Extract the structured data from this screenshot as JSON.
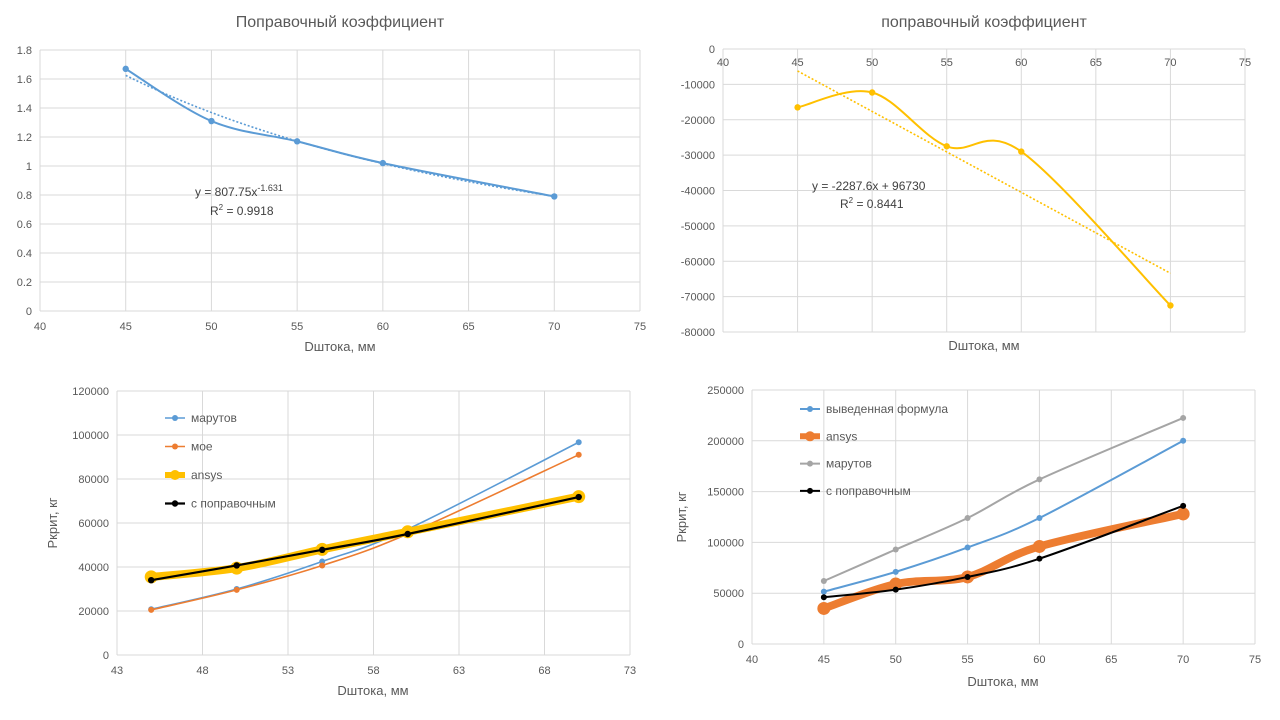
{
  "chart_data": [
    {
      "type": "scatter",
      "title": "Поправочный коэффициент",
      "xlabel": "Dштока, мм",
      "ylabel": "",
      "xlim": [
        40,
        75
      ],
      "ylim": [
        0,
        1.8
      ],
      "x_ticks": [
        "40",
        "45",
        "50",
        "55",
        "60",
        "65",
        "70",
        "75"
      ],
      "y_ticks": [
        "0",
        "0.2",
        "0.4",
        "0.6",
        "0.8",
        "1",
        "1.2",
        "1.4",
        "1.6",
        "1.8"
      ],
      "grid": "vertical and horizontal",
      "series": [
        {
          "x": [
            45,
            50,
            55,
            60,
            70
          ],
          "y": [
            1.67,
            1.31,
            1.17,
            1.02,
            0.79
          ],
          "color": "#5b9bd5"
        }
      ],
      "trendline": {
        "kind": "power",
        "a": 807.75,
        "b": -1.631,
        "color": "#5b9bd5"
      },
      "equation": {
        "base": "y = 807.75x",
        "exp": "-1.631",
        "r2_pre": "R",
        "r2_sup": "2",
        "r2_post": " = 0.9918"
      }
    },
    {
      "type": "scatter",
      "title": "поправочный коэффициент",
      "xlabel": "Dштока, мм",
      "ylabel": "",
      "xlim": [
        40,
        75
      ],
      "ylim": [
        -80000,
        0
      ],
      "x_ticks": [
        "40",
        "45",
        "50",
        "55",
        "60",
        "65",
        "70",
        "75"
      ],
      "y_ticks": [
        "0",
        "-10000",
        "-20000",
        "-30000",
        "-40000",
        "-50000",
        "-60000",
        "-70000",
        "-80000"
      ],
      "x_axis_position": "top",
      "grid": "vertical and horizontal",
      "series": [
        {
          "x": [
            45,
            50,
            55,
            60,
            70
          ],
          "y": [
            -16500,
            -12300,
            -27500,
            -29000,
            -72500
          ],
          "color": "#ffc000"
        }
      ],
      "trendline": {
        "kind": "linear",
        "slope": -2287.6,
        "intercept": 96730,
        "color": "#ffc000"
      },
      "equation": {
        "base": "y = -2287.6x + 96730",
        "exp": "",
        "r2_pre": "R",
        "r2_sup": "2",
        "r2_post": " = 0.8441"
      }
    },
    {
      "type": "line",
      "title": "",
      "xlabel": "Dштока, мм",
      "ylabel": "Ркрит, кг",
      "xlim": [
        43,
        73
      ],
      "ylim": [
        0,
        120000
      ],
      "x_ticks": [
        "43",
        "48",
        "53",
        "58",
        "63",
        "68",
        "73"
      ],
      "y_ticks": [
        "0",
        "20000",
        "40000",
        "60000",
        "80000",
        "100000",
        "120000"
      ],
      "legend_position": "top-left",
      "grid": "vertical and horizontal",
      "series": [
        {
          "name": "марутов",
          "x": [
            45,
            50,
            55,
            60,
            70
          ],
          "y": [
            20800,
            30000,
            42500,
            57200,
            96700
          ],
          "color": "#5b9bd5"
        },
        {
          "name": "мое",
          "x": [
            45,
            50,
            55,
            60,
            70
          ],
          "y": [
            20500,
            29600,
            40700,
            55000,
            91000
          ],
          "color": "#ed7d31"
        },
        {
          "name": "ansys",
          "x": [
            45,
            50,
            55,
            60,
            70
          ],
          "y": [
            35500,
            39500,
            48000,
            56000,
            72000
          ],
          "color": "#ffc000"
        },
        {
          "name": "с поправочным",
          "x": [
            45,
            50,
            55,
            60,
            70
          ],
          "y": [
            34000,
            40700,
            47800,
            55000,
            71800
          ],
          "color": "#000000"
        }
      ]
    },
    {
      "type": "line",
      "title": "",
      "xlabel": "Dштока, мм",
      "ylabel": "Ркрит, кг",
      "xlim": [
        40,
        75
      ],
      "ylim": [
        0,
        250000
      ],
      "x_ticks": [
        "40",
        "45",
        "50",
        "55",
        "60",
        "65",
        "70",
        "75"
      ],
      "y_ticks": [
        "0",
        "50000",
        "100000",
        "150000",
        "200000",
        "250000"
      ],
      "legend_position": "top-left",
      "grid": "vertical and horizontal",
      "series": [
        {
          "name": "выведенная формула",
          "x": [
            45,
            50,
            55,
            60,
            70
          ],
          "y": [
            51500,
            71000,
            95000,
            124000,
            200000
          ],
          "color": "#5b9bd5"
        },
        {
          "name": "ansys",
          "x": [
            45,
            50,
            55,
            60,
            70
          ],
          "y": [
            35000,
            59000,
            66000,
            96000,
            128000
          ],
          "color": "#ed7d31"
        },
        {
          "name": "марутов",
          "x": [
            45,
            50,
            55,
            60,
            70
          ],
          "y": [
            62000,
            93000,
            124000,
            162000,
            222500
          ],
          "color": "#a5a5a5"
        },
        {
          "name": "с поправочным",
          "x": [
            45,
            50,
            55,
            60,
            70
          ],
          "y": [
            46000,
            53500,
            66000,
            84000,
            136000
          ],
          "color": "#000000"
        }
      ]
    }
  ]
}
